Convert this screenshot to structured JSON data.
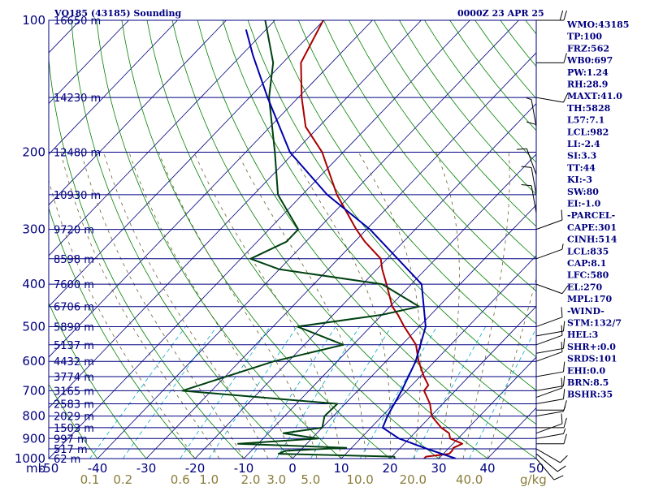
{
  "header": {
    "station": "VQ185 (43185) Sounding",
    "time": "0000Z 23 APR 25"
  },
  "axis": {
    "unit_left": "mb",
    "unit_mix": "g/kg"
  },
  "colors": {
    "frame": "#000080",
    "temperature": "#aa0000",
    "dewpoint": "#004010",
    "parcel": "#0000aa",
    "dry_adiabat": "#000080",
    "moist_adiabat": "#008000",
    "mixing_ratio": "#00aacc",
    "isotherm_dashed": "#6a6030",
    "wind_barb": "#000000"
  },
  "indices": [
    "WMO:43185",
    "TP:100",
    "FRZ:562",
    "WB0:697",
    "PW:1.24",
    "RH:28.9",
    "MAXT:41.0",
    "TH:5828",
    "L57:7.1",
    "LCL:982",
    "LI:-2.4",
    "SI:3.3",
    "TT:44",
    "KI:-3",
    "SW:80",
    "EI:-1.0",
    "-PARCEL-",
    "CAPE:301",
    "CINH:514",
    "LCL:835",
    "CAP:8.1",
    "LFC:580",
    "EL:270",
    "MPL:170",
    "-WIND-",
    "STM:132/7",
    "HEL:3",
    "SHR+:0.0",
    "SRDS:101",
    "EHI:0.0",
    "BRN:8.5",
    "BSHR:35"
  ],
  "chart_data": {
    "type": "line",
    "title": "VQ185 (43185) Sounding",
    "subtitle": "0000Z 23 APR 25",
    "xlabel": "",
    "ylabel": "mb",
    "ylim": [
      1000,
      100
    ],
    "xlim": [
      -50,
      50
    ],
    "y_scale": "log",
    "pressure_levels": [
      {
        "p": 100,
        "label": "100",
        "height": "16650 m"
      },
      {
        "p": 150,
        "label": "",
        "height": "14230 m"
      },
      {
        "p": 200,
        "label": "200",
        "height": "12480 m"
      },
      {
        "p": 250,
        "label": "",
        "height": "10930 m"
      },
      {
        "p": 300,
        "label": "300",
        "height": "9720 m"
      },
      {
        "p": 350,
        "label": "",
        "height": "8598 m"
      },
      {
        "p": 400,
        "label": "400",
        "height": "7600 m"
      },
      {
        "p": 450,
        "label": "",
        "height": "6706 m"
      },
      {
        "p": 500,
        "label": "500",
        "height": "5890 m"
      },
      {
        "p": 550,
        "label": "",
        "height": "5137 m"
      },
      {
        "p": 600,
        "label": "600",
        "height": "4432 m"
      },
      {
        "p": 650,
        "label": "",
        "height": "3774 m"
      },
      {
        "p": 700,
        "label": "700",
        "height": "3165 m"
      },
      {
        "p": 750,
        "label": "",
        "height": "2583 m"
      },
      {
        "p": 800,
        "label": "800",
        "height": "2029 m"
      },
      {
        "p": 850,
        "label": "",
        "height": "1503 m"
      },
      {
        "p": 900,
        "label": "900",
        "height": "997 m"
      },
      {
        "p": 950,
        "label": "",
        "height": "517 m"
      },
      {
        "p": 1000,
        "label": "1000",
        "height": "62 m"
      }
    ],
    "temperature_ticks": [
      "-50",
      "-40",
      "-30",
      "-20",
      "-10",
      "0",
      "10",
      "20",
      "30",
      "40",
      "50"
    ],
    "temperature_tick_values": [
      -50,
      -40,
      -30,
      -20,
      -10,
      0,
      10,
      20,
      30,
      40,
      50
    ],
    "mixing_ratio_ticks": [
      "0.1",
      "0.2",
      "0.6",
      "1.0",
      "2.0",
      "3.0",
      "5.0",
      "10.0",
      "20.0",
      "40.0"
    ],
    "mixing_ratio_values": [
      0.1,
      0.2,
      0.6,
      1.0,
      2.0,
      3.0,
      5.0,
      10.0,
      20.0,
      40.0
    ],
    "series": [
      {
        "name": "Temperature",
        "points": [
          {
            "p": 1000,
            "t": 27.0
          },
          {
            "p": 990,
            "t": 27.0
          },
          {
            "p": 975,
            "t": 31.2
          },
          {
            "p": 960,
            "t": 31.2
          },
          {
            "p": 945,
            "t": 30.9
          },
          {
            "p": 925,
            "t": 31.9
          },
          {
            "p": 900,
            "t": 28.4
          },
          {
            "p": 875,
            "t": 27.1
          },
          {
            "p": 850,
            "t": 24.4
          },
          {
            "p": 800,
            "t": 20.2
          },
          {
            "p": 750,
            "t": 17.4
          },
          {
            "p": 700,
            "t": 13.6
          },
          {
            "p": 680,
            "t": 13.4
          },
          {
            "p": 650,
            "t": 10.8
          },
          {
            "p": 600,
            "t": 6.7
          },
          {
            "p": 550,
            "t": 2.9
          },
          {
            "p": 500,
            "t": -3.1
          },
          {
            "p": 470,
            "t": -6.7
          },
          {
            "p": 450,
            "t": -9.5
          },
          {
            "p": 400,
            "t": -15.1
          },
          {
            "p": 370,
            "t": -18.9
          },
          {
            "p": 350,
            "t": -21.3
          },
          {
            "p": 320,
            "t": -27.9
          },
          {
            "p": 300,
            "t": -32.1
          },
          {
            "p": 250,
            "t": -42.9
          },
          {
            "p": 200,
            "t": -54.3
          },
          {
            "p": 175,
            "t": -62.7
          },
          {
            "p": 150,
            "t": -69.3
          },
          {
            "p": 125,
            "t": -76.3
          },
          {
            "p": 100,
            "t": -80.1
          }
        ]
      },
      {
        "name": "Dewpoint",
        "points": [
          {
            "p": 1000,
            "td": 21.0
          },
          {
            "p": 990,
            "td": 20.5
          },
          {
            "p": 975,
            "td": -3.8
          },
          {
            "p": 960,
            "td": -3.0
          },
          {
            "p": 945,
            "td": 8.9
          },
          {
            "p": 925,
            "td": -14.1
          },
          {
            "p": 900,
            "td": 1.3
          },
          {
            "p": 875,
            "td": -6.9
          },
          {
            "p": 850,
            "td": 0.0
          },
          {
            "p": 800,
            "td": -1.8
          },
          {
            "p": 750,
            "td": -1.6
          },
          {
            "p": 700,
            "td": -36.0
          },
          {
            "p": 600,
            "td": -23.0
          },
          {
            "p": 550,
            "td": -12.0
          },
          {
            "p": 500,
            "td": -25.0
          },
          {
            "p": 470,
            "td": -10.0
          },
          {
            "p": 450,
            "td": -4.0
          },
          {
            "p": 400,
            "td": -16.0
          },
          {
            "p": 370,
            "td": -40.0
          },
          {
            "p": 350,
            "td": -48.0
          },
          {
            "p": 320,
            "td": -44.0
          },
          {
            "p": 300,
            "td": -44.0
          },
          {
            "p": 250,
            "td": -55.0
          },
          {
            "p": 200,
            "td": -64.0
          },
          {
            "p": 150,
            "td": -76.0
          },
          {
            "p": 125,
            "td": -82.0
          },
          {
            "p": 100,
            "td": -92.0
          }
        ]
      },
      {
        "name": "Parcel",
        "points": [
          {
            "p": 1000,
            "t": 33.5
          },
          {
            "p": 950,
            "t": 25.7
          },
          {
            "p": 900,
            "t": 17.9
          },
          {
            "p": 850,
            "t": 12.4
          },
          {
            "p": 800,
            "t": 11.1
          },
          {
            "p": 700,
            "t": 9.0
          },
          {
            "p": 600,
            "t": 6.1
          },
          {
            "p": 500,
            "t": 1.3
          },
          {
            "p": 400,
            "t": -7.9
          },
          {
            "p": 300,
            "t": -29.3
          },
          {
            "p": 250,
            "t": -44.9
          },
          {
            "p": 200,
            "t": -60.9
          },
          {
            "p": 150,
            "t": -76.3
          },
          {
            "p": 120,
            "t": -87.7
          },
          {
            "p": 105,
            "t": -94.1
          }
        ]
      }
    ],
    "wind_barbs": [
      {
        "p": 1000,
        "dir": 140,
        "spd": 10
      },
      {
        "p": 975,
        "dir": 130,
        "spd": 10
      },
      {
        "p": 950,
        "dir": 120,
        "spd": 10
      },
      {
        "p": 925,
        "dir": 90,
        "spd": 10
      },
      {
        "p": 900,
        "dir": 80,
        "spd": 5
      },
      {
        "p": 875,
        "dir": 70,
        "spd": 10
      },
      {
        "p": 850,
        "dir": 90,
        "spd": 10
      },
      {
        "p": 800,
        "dir": 80,
        "spd": 5
      },
      {
        "p": 775,
        "dir": 90,
        "spd": 10
      },
      {
        "p": 750,
        "dir": 80,
        "spd": 10
      },
      {
        "p": 725,
        "dir": 70,
        "spd": 10
      },
      {
        "p": 700,
        "dir": 80,
        "spd": 10
      },
      {
        "p": 650,
        "dir": 80,
        "spd": 10
      },
      {
        "p": 600,
        "dir": 70,
        "spd": 10
      },
      {
        "p": 575,
        "dir": 80,
        "spd": 10
      },
      {
        "p": 550,
        "dir": 70,
        "spd": 10
      },
      {
        "p": 525,
        "dir": 80,
        "spd": 10
      },
      {
        "p": 500,
        "dir": 70,
        "spd": 10
      },
      {
        "p": 400,
        "dir": 110,
        "spd": 10
      },
      {
        "p": 350,
        "dir": 70,
        "spd": 5
      },
      {
        "p": 300,
        "dir": 70,
        "spd": 10
      },
      {
        "p": 275,
        "dir": 350,
        "spd": 10
      },
      {
        "p": 250,
        "dir": 350,
        "spd": 10
      },
      {
        "p": 225,
        "dir": 340,
        "spd": 10
      },
      {
        "p": 200,
        "dir": 360,
        "spd": 10
      },
      {
        "p": 175,
        "dir": 350,
        "spd": 5
      },
      {
        "p": 150,
        "dir": 100,
        "spd": 10
      },
      {
        "p": 125,
        "dir": 90,
        "spd": 10
      },
      {
        "p": 100,
        "dir": 90,
        "spd": 20
      }
    ]
  }
}
